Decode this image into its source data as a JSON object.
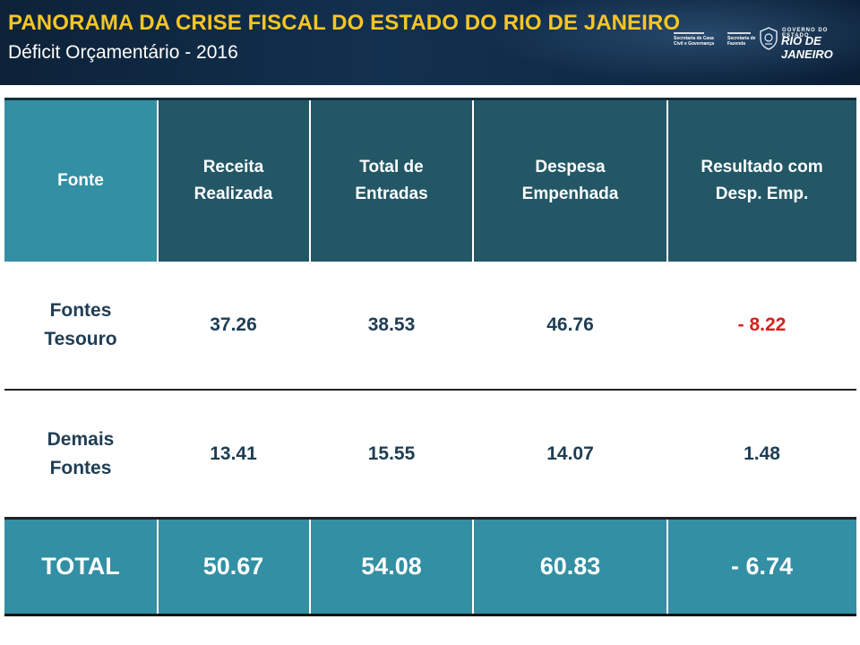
{
  "header": {
    "title": "PANORAMA DA CRISE FISCAL DO ESTADO DO RIO DE JANEIRO",
    "subtitle": "Déficit Orçamentário - 2016",
    "logos": {
      "casa_civil": "Secretaria de Casa Civil e Governança",
      "fazenda": "Secretaria de Fazenda",
      "governo_top": "GOVERNO DO ESTADO",
      "governo_main": "RIO DE JANEIRO"
    }
  },
  "table": {
    "columns": [
      "Fonte",
      "Receita Realizada",
      "Total de Entradas",
      "Despesa Empenhada",
      "Resultado com Desp. Emp."
    ],
    "rows": [
      {
        "fonte": "Fontes Tesouro",
        "receita": "37.26",
        "entradas": "38.53",
        "despesa": "46.76",
        "resultado": "- 8.22"
      },
      {
        "fonte": "Demais Fontes",
        "receita": "13.41",
        "entradas": "15.55",
        "despesa": "14.07",
        "resultado": "1.48"
      }
    ],
    "total": {
      "fonte": "TOTAL",
      "receita": "50.67",
      "entradas": "54.08",
      "despesa": "60.83",
      "resultado": "- 6.74"
    }
  },
  "colors": {
    "header_bg": "#12304f",
    "title": "#f5c623",
    "table_head": "#235766",
    "table_accent": "#338fa3",
    "negative": "#d62020",
    "body_text": "#1e3d54"
  }
}
